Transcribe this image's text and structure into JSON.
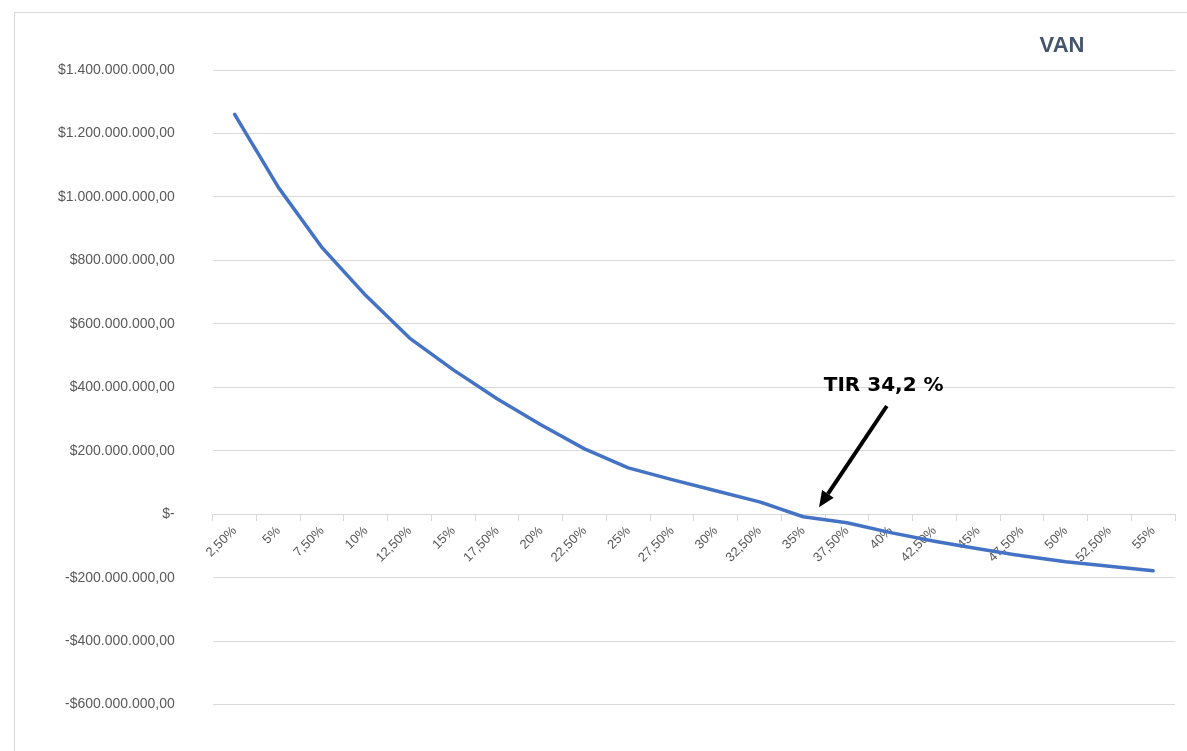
{
  "chart_data": {
    "type": "line",
    "title": "VAN",
    "categories": [
      "2,50%",
      "5%",
      "7,50%",
      "10%",
      "12,50%",
      "15%",
      "17,50%",
      "20%",
      "22,50%",
      "25%",
      "27,50%",
      "30%",
      "32,50%",
      "35%",
      "37,50%",
      "40%",
      "42,50%",
      "45%",
      "47,50%",
      "50%",
      "52,50%",
      "55%"
    ],
    "series": [
      {
        "color": "#4472c4",
        "values": [
          1260000000,
          1030000000,
          840000000,
          689000000,
          555000000,
          455000000,
          364000000,
          282000000,
          206000000,
          146000000,
          109000000,
          74000000,
          39000000,
          -8000000,
          -27000000,
          -58000000,
          -85000000,
          -109000000,
          -131000000,
          -150000000,
          -164000000,
          -178000000
        ]
      }
    ],
    "ylim": [
      -600000000,
      1400000000
    ],
    "yticks": [
      {
        "value": -600000000,
        "label": "-$600.000.000,00"
      },
      {
        "value": -400000000,
        "label": "-$400.000.000,00"
      },
      {
        "value": -200000000,
        "label": "-$200.000.000,00"
      },
      {
        "value": 0,
        "label": "$-"
      },
      {
        "value": 200000000,
        "label": "$200.000.000,00"
      },
      {
        "value": 400000000,
        "label": "$400.000.000,00"
      },
      {
        "value": 600000000,
        "label": "$600.000.000,00"
      },
      {
        "value": 800000000,
        "label": "$800.000.000,00"
      },
      {
        "value": 1000000000,
        "label": "$1.000.000.000,00"
      },
      {
        "value": 1200000000,
        "label": "$1.200.000.000,00"
      },
      {
        "value": 1400000000,
        "label": "$1.400.000.000,00"
      }
    ],
    "annotations": [
      "TIR 34,2 %"
    ],
    "grid": "y",
    "legend": false,
    "marker": "none",
    "line_style": "solid"
  }
}
